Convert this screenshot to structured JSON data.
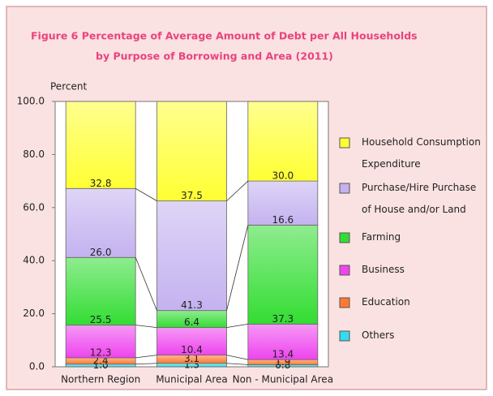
{
  "chart_data": {
    "type": "stacked_bar",
    "title": [
      "Figure  6  Percentage of Average Amount of Debt per All Households",
      "by Purpose of Borrowing and Area (2011)"
    ],
    "y_label": "Percent",
    "categories": [
      "Northern Region",
      "Municipal Area",
      "Non - Municipal Area"
    ],
    "ylim": [
      0,
      100
    ],
    "yticks": [
      {
        "value": 0,
        "label": "0.0"
      },
      {
        "value": 20,
        "label": "20.0"
      },
      {
        "value": 40,
        "label": "40.0"
      },
      {
        "value": 60,
        "label": "60.0"
      },
      {
        "value": 80,
        "label": "80.0"
      },
      {
        "value": 100,
        "label": "100.0"
      }
    ],
    "series": [
      {
        "name": "Others",
        "color": "#33dcee",
        "values": [
          1.0,
          1.3,
          0.8
        ],
        "value_labels": [
          "1.0",
          "1.3",
          "0.8"
        ]
      },
      {
        "name": "Education",
        "color": "#ff7a30",
        "values": [
          2.4,
          3.1,
          1.9
        ],
        "value_labels": [
          "2.4",
          "3.1",
          "1.9"
        ]
      },
      {
        "name": "Business",
        "color": "#ee44ee",
        "values": [
          12.3,
          10.4,
          13.4
        ],
        "value_labels": [
          "12.3",
          "10.4",
          "13.4"
        ]
      },
      {
        "name": "Farming",
        "color": "#33dd33",
        "values": [
          25.5,
          6.4,
          37.3
        ],
        "value_labels": [
          "25.5",
          "6.4",
          "37.3"
        ]
      },
      {
        "name": "Purchase/Hire Purchase of House and/or Land",
        "color": "#c4b2f0",
        "values": [
          26.0,
          41.3,
          16.6
        ],
        "value_labels": [
          "26.0",
          "41.3",
          "16.6"
        ]
      },
      {
        "name": "Household Consumption Expenditure",
        "color": "#ffff33",
        "values": [
          32.8,
          37.5,
          30.0
        ],
        "value_labels": [
          "32.8",
          "37.5",
          "30.0"
        ]
      }
    ]
  }
}
